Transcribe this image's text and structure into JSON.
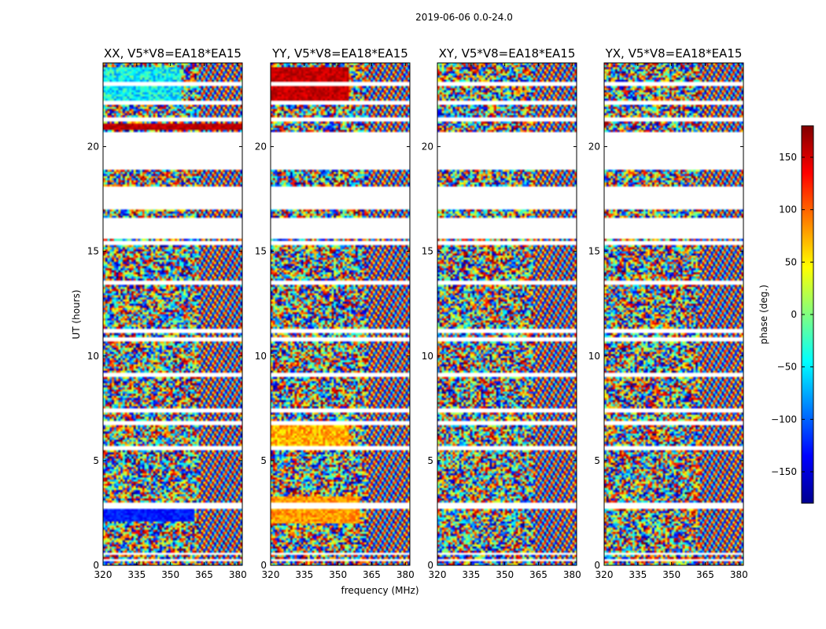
{
  "chart_data": {
    "type": "heatmap",
    "suptitle": "2019-06-06 0.0-24.0",
    "xlabel": "frequency (MHz)",
    "ylabel": "UT (hours)",
    "xlim": [
      320,
      382
    ],
    "ylim": [
      0,
      24
    ],
    "x_ticks": [
      320,
      335,
      350,
      365,
      380
    ],
    "y_ticks": [
      0,
      5,
      10,
      15,
      20
    ],
    "panels": [
      {
        "title": "XX, V5*V8=EA18*EA15",
        "pol": "XX"
      },
      {
        "title": "YY, V5*V8=EA18*EA15",
        "pol": "YY"
      },
      {
        "title": "XY, V5*V8=EA18*EA15",
        "pol": "XY"
      },
      {
        "title": "YX, V5*V8=EA18*EA15",
        "pol": "YX"
      }
    ],
    "colorbar": {
      "label": "phase (deg.)",
      "range": [
        -180,
        180
      ],
      "ticks": [
        -150,
        -100,
        -50,
        0,
        50,
        100,
        150
      ],
      "colormap": "jet"
    },
    "data_gaps_ut": [
      [
        0.15,
        0.25
      ],
      [
        0.55,
        0.62
      ],
      [
        0.95,
        1.02
      ],
      [
        2.75,
        2.95
      ],
      [
        3.45,
        3.55
      ],
      [
        4.15,
        4.22
      ],
      [
        5.55,
        5.65
      ],
      [
        6.75,
        6.9
      ],
      [
        7.35,
        7.45
      ],
      [
        9.05,
        9.15
      ],
      [
        10.75,
        10.9
      ],
      [
        11.15,
        11.25
      ],
      [
        13.45,
        13.55
      ],
      [
        15.35,
        15.5
      ],
      [
        15.6,
        16.6
      ],
      [
        17.05,
        18.05
      ],
      [
        18.95,
        20.7
      ],
      [
        21.2,
        21.35
      ],
      [
        22.05,
        22.2
      ],
      [
        22.9,
        23.05
      ]
    ]
  }
}
